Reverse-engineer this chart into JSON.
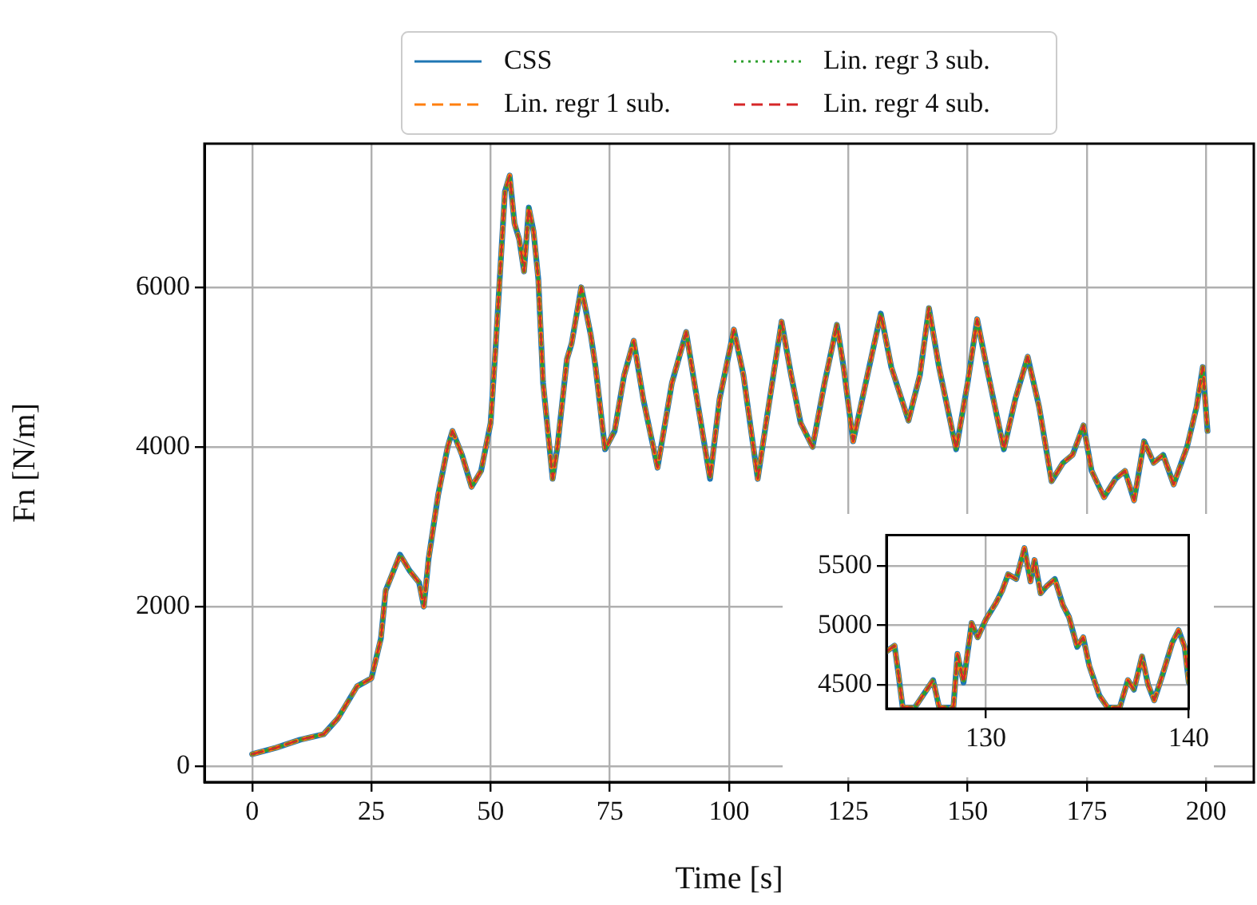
{
  "chart_data": [
    {
      "type": "line",
      "xlabel": "Time [s]",
      "ylabel": "Fn [N/m]",
      "xlim": [
        -10,
        210
      ],
      "ylim": [
        -200,
        7800
      ],
      "xticks": [
        0,
        25,
        50,
        75,
        100,
        125,
        150,
        175,
        200
      ],
      "yticks": [
        0,
        2000,
        4000,
        6000
      ],
      "grid": true,
      "legend": "top",
      "x": [
        0,
        5,
        10,
        15,
        18,
        20,
        22,
        25,
        27,
        28,
        30,
        31,
        33,
        35,
        36,
        37,
        39,
        41,
        42,
        44,
        46,
        48,
        50,
        51,
        52,
        53,
        54,
        55,
        56,
        57,
        58,
        59,
        60,
        61,
        62,
        63,
        64,
        66,
        67,
        69,
        71,
        72,
        74,
        76,
        78,
        80,
        82,
        85,
        88,
        91,
        93,
        96,
        98,
        101,
        103,
        106,
        108,
        111,
        113,
        115,
        117.5,
        120,
        122.6,
        124,
        126,
        129,
        131.8,
        134,
        137.6,
        140,
        141.9,
        144,
        147.6,
        150,
        152,
        154,
        157.6,
        160,
        162.6,
        165,
        167.6,
        170,
        172,
        174.3,
        176,
        178.6,
        181,
        183,
        184.9,
        187,
        189,
        191,
        193.2,
        196,
        198,
        199.3,
        200.3
      ],
      "series": [
        {
          "name": "CSS",
          "color": "#1f77b4",
          "line_style": "solid",
          "values": [
            150,
            230,
            330,
            400,
            600,
            800,
            1000,
            1100,
            1600,
            2200,
            2500,
            2650,
            2450,
            2300,
            2000,
            2600,
            3400,
            4000,
            4200,
            3900,
            3500,
            3700,
            4300,
            5200,
            6200,
            7200,
            7400,
            6800,
            6600,
            6200,
            7000,
            6700,
            6100,
            4800,
            4200,
            3600,
            4000,
            5100,
            5300,
            6000,
            5400,
            5000,
            3970,
            4200,
            4900,
            5330,
            4600,
            3740,
            4800,
            5440,
            4700,
            3600,
            4600,
            5470,
            4900,
            3600,
            4400,
            5570,
            4900,
            4300,
            4000,
            4800,
            5530,
            5000,
            4070,
            4900,
            5670,
            5000,
            4330,
            4900,
            5740,
            5000,
            3970,
            4800,
            5600,
            5000,
            3970,
            4600,
            5130,
            4500,
            3570,
            3800,
            3900,
            4270,
            3700,
            3370,
            3600,
            3700,
            3330,
            4070,
            3800,
            3900,
            3530,
            4000,
            4500,
            5000,
            4200
          ]
        },
        {
          "name": "Lin. regr 1 sub.",
          "color": "#ff7f0e",
          "line_style": "dashed",
          "values": [
            150,
            230,
            330,
            400,
            600,
            800,
            1000,
            1100,
            1600,
            2200,
            2500,
            2650,
            2450,
            2300,
            2000,
            2600,
            3400,
            4000,
            4200,
            3900,
            3500,
            3700,
            4300,
            5200,
            6200,
            7200,
            7400,
            6800,
            6600,
            6200,
            7000,
            6700,
            6100,
            4800,
            4200,
            3600,
            4000,
            5100,
            5300,
            6000,
            5400,
            5000,
            3970,
            4200,
            4900,
            5330,
            4600,
            3740,
            4800,
            5440,
            4700,
            3600,
            4600,
            5470,
            4900,
            3600,
            4400,
            5570,
            4900,
            4300,
            4000,
            4800,
            5530,
            5000,
            4070,
            4900,
            5670,
            5000,
            4330,
            4900,
            5740,
            5000,
            3970,
            4800,
            5600,
            5000,
            3970,
            4600,
            5130,
            4500,
            3570,
            3800,
            3900,
            4270,
            3700,
            3370,
            3600,
            3700,
            3330,
            4070,
            3800,
            3900,
            3530,
            4000,
            4500,
            5000,
            4200
          ]
        },
        {
          "name": "Lin. regr 3 sub.",
          "color": "#2ca02c",
          "line_style": "dotted",
          "values": [
            150,
            230,
            330,
            400,
            600,
            800,
            1000,
            1100,
            1600,
            2200,
            2500,
            2650,
            2450,
            2300,
            2000,
            2600,
            3400,
            4000,
            4200,
            3900,
            3500,
            3700,
            4300,
            5200,
            6200,
            7200,
            7400,
            6800,
            6600,
            6200,
            7000,
            6700,
            6100,
            4800,
            4200,
            3600,
            4000,
            5100,
            5300,
            6000,
            5400,
            5000,
            3970,
            4200,
            4900,
            5330,
            4600,
            3740,
            4800,
            5440,
            4700,
            3600,
            4600,
            5470,
            4900,
            3600,
            4400,
            5570,
            4900,
            4300,
            4000,
            4800,
            5530,
            5000,
            4070,
            4900,
            5670,
            5000,
            4330,
            4900,
            5740,
            5000,
            3970,
            4800,
            5600,
            5000,
            3970,
            4600,
            5130,
            4500,
            3570,
            3800,
            3900,
            4270,
            3700,
            3370,
            3600,
            3700,
            3330,
            4070,
            3800,
            3900,
            3530,
            4000,
            4500,
            5000,
            4200
          ]
        },
        {
          "name": "Lin. regr 4 sub.",
          "color": "#d62728",
          "line_style": "dashed",
          "values": [
            150,
            230,
            330,
            400,
            600,
            800,
            1000,
            1100,
            1600,
            2200,
            2500,
            2650,
            2450,
            2300,
            2000,
            2600,
            3400,
            4000,
            4200,
            3900,
            3500,
            3700,
            4300,
            5200,
            6200,
            7200,
            7400,
            6800,
            6600,
            6200,
            7000,
            6700,
            6100,
            4800,
            4200,
            3600,
            4000,
            5100,
            5300,
            6000,
            5400,
            5000,
            3970,
            4200,
            4900,
            5330,
            4600,
            3740,
            4800,
            5440,
            4700,
            3600,
            4600,
            5470,
            4900,
            3600,
            4400,
            5570,
            4900,
            4300,
            4000,
            4800,
            5530,
            5000,
            4070,
            4900,
            5670,
            5000,
            4330,
            4900,
            5740,
            5000,
            3970,
            4800,
            5600,
            5000,
            3970,
            4600,
            5130,
            4500,
            3570,
            3800,
            3900,
            4270,
            3700,
            3370,
            3600,
            3700,
            3330,
            4070,
            3800,
            3900,
            3530,
            4000,
            4500,
            5000,
            4200
          ]
        }
      ]
    },
    {
      "type": "line",
      "xlim": [
        125.1,
        140
      ],
      "ylim": [
        4300,
        5760
      ],
      "xticks": [
        130,
        140
      ],
      "yticks": [
        4500,
        5000,
        5500
      ],
      "grid": true,
      "x": [
        125.1,
        125.5,
        125.7,
        125.9,
        126.5,
        127.4,
        127.7,
        128.4,
        128.6,
        128.9,
        129.3,
        129.6,
        130,
        130.5,
        130.8,
        131.1,
        131.5,
        131.9,
        132.2,
        132.4,
        132.7,
        133,
        133.4,
        133.8,
        134.1,
        134.5,
        134.8,
        135.1,
        135.6,
        136,
        136.6,
        137,
        137.3,
        137.7,
        138,
        138.3,
        138.7,
        139.2,
        139.5,
        139.8,
        140
      ],
      "series": [
        {
          "color": "#1f77b4",
          "line_style": "solid",
          "values": [
            4780,
            4830,
            4580,
            4310,
            4310,
            4540,
            4310,
            4310,
            4760,
            4520,
            5020,
            4900,
            5050,
            5190,
            5290,
            5430,
            5390,
            5650,
            5370,
            5550,
            5270,
            5330,
            5390,
            5170,
            5070,
            4820,
            4900,
            4660,
            4410,
            4310,
            4310,
            4540,
            4460,
            4740,
            4500,
            4370,
            4580,
            4860,
            4960,
            4820,
            4520
          ]
        },
        {
          "color": "#ff7f0e",
          "line_style": "dashed",
          "values": [
            4780,
            4830,
            4580,
            4310,
            4310,
            4540,
            4310,
            4310,
            4760,
            4520,
            5020,
            4900,
            5050,
            5190,
            5290,
            5430,
            5390,
            5650,
            5370,
            5550,
            5270,
            5330,
            5390,
            5170,
            5070,
            4820,
            4900,
            4660,
            4410,
            4310,
            4310,
            4540,
            4460,
            4740,
            4500,
            4370,
            4580,
            4860,
            4960,
            4820,
            4520
          ]
        },
        {
          "color": "#2ca02c",
          "line_style": "dotted",
          "values": [
            4780,
            4830,
            4580,
            4310,
            4310,
            4540,
            4310,
            4310,
            4760,
            4520,
            5020,
            4900,
            5050,
            5190,
            5290,
            5430,
            5390,
            5650,
            5370,
            5550,
            5270,
            5330,
            5390,
            5170,
            5070,
            4820,
            4900,
            4660,
            4410,
            4310,
            4310,
            4540,
            4460,
            4740,
            4500,
            4370,
            4580,
            4860,
            4960,
            4820,
            4520
          ]
        },
        {
          "color": "#d62728",
          "line_style": "dashed",
          "values": [
            4780,
            4830,
            4580,
            4310,
            4310,
            4540,
            4310,
            4310,
            4760,
            4520,
            5020,
            4900,
            5050,
            5190,
            5290,
            5430,
            5390,
            5650,
            5370,
            5550,
            5270,
            5330,
            5390,
            5170,
            5070,
            4820,
            4900,
            4660,
            4410,
            4310,
            4310,
            4540,
            4460,
            4740,
            4500,
            4370,
            4580,
            4860,
            4960,
            4820,
            4520
          ]
        }
      ]
    }
  ]
}
